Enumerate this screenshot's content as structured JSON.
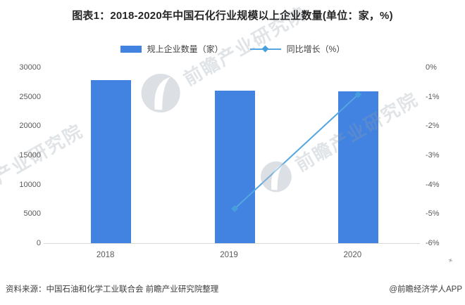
{
  "title": "图表1：2018-2020年中国石化行业规模以上企业数量(单位：家，%)",
  "legend": {
    "bar_label": "规上企业数量（家）",
    "line_label": "同比增长（%）"
  },
  "chart_data": {
    "type": "bar",
    "subtype": "bar-line-combo",
    "categories": [
      "2018",
      "2019",
      "2020"
    ],
    "series": [
      {
        "name": "规上企业数量（家）",
        "type": "bar",
        "axis": "left",
        "values": [
          28000,
          26200,
          26000
        ]
      },
      {
        "name": "同比增长（%）",
        "type": "line",
        "axis": "right",
        "values": [
          null,
          -4.8,
          -0.9
        ]
      }
    ],
    "left_axis": {
      "min": 0,
      "max": 30000,
      "ticks": [
        "30000",
        "25000",
        "20000",
        "15000",
        "10000",
        "5000",
        "0"
      ]
    },
    "right_axis": {
      "min": -6,
      "max": 0,
      "ticks": [
        "0%",
        "-1%",
        "-2%",
        "-3%",
        "-4%",
        "-5%",
        "-6%"
      ]
    },
    "grid": false,
    "legend_position": "top"
  },
  "footer": {
    "source": "资料来源：中国石油和化学工业联合会 前瞻产业研究院整理",
    "credit": "@前瞻经济学人APP"
  },
  "watermark": {
    "text": "前瞻产业研究院"
  },
  "colors": {
    "bar": "#4282e0",
    "line": "#55a6e0",
    "marker": "#459fdc",
    "title": "#262626",
    "axis_text": "#595959",
    "axis_line": "#d9d9d9",
    "watermark": "#95a0ac"
  },
  "cursor_glyph": "+"
}
